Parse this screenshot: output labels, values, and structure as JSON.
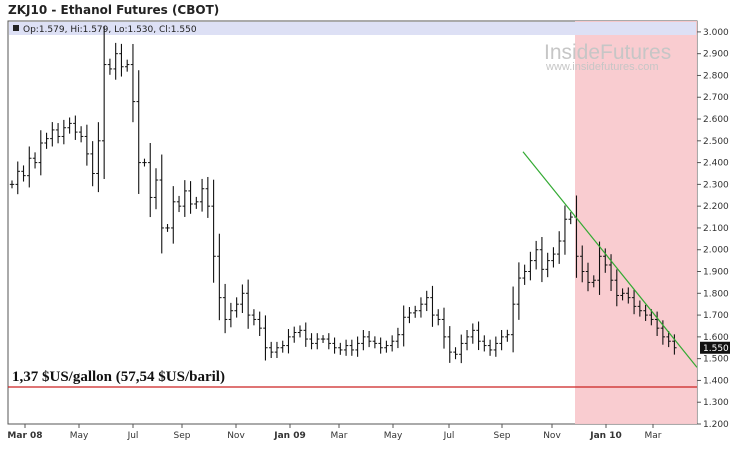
{
  "title": "ZKJ10 - Ethanol Futures (CBOT)",
  "ohlc_text": "Op:1.579, Hi:1.579, Lo:1.530, Cl:1.550",
  "watermark": {
    "brand": "InsideFutures",
    "url": "www.insidefutures.com"
  },
  "last_price_label": "1.550",
  "annotation": "1,37 $US/gallon (57,54 $US/baril)",
  "colors": {
    "bars": "#111111",
    "highlight": "#f9c9cd",
    "trendline": "#33aa33",
    "reference_line": "#cc2222",
    "ohlc_header": "#dde0f5"
  },
  "chart_data": {
    "type": "ohlc",
    "title": "ZKJ10 - Ethanol Futures (CBOT)",
    "y_ticks": [
      "1.200",
      "1.300",
      "1.400",
      "1.500",
      "1.550",
      "1.600",
      "1.700",
      "1.800",
      "1.900",
      "2.000",
      "2.100",
      "2.200",
      "2.300",
      "2.400",
      "2.500",
      "2.600",
      "2.700",
      "2.800",
      "2.900",
      "3.000"
    ],
    "ylim": [
      1.2,
      3.05
    ],
    "x_ticks": [
      "Mar 08",
      "May",
      "Jul",
      "Sep",
      "Nov",
      "Jan 09",
      "Mar",
      "May",
      "Jul",
      "Sep",
      "Nov",
      "Jan 10",
      "Mar"
    ],
    "x_tick_bold": [
      true,
      false,
      false,
      false,
      false,
      true,
      false,
      false,
      false,
      false,
      false,
      true,
      false
    ],
    "highlight_start_x": 165,
    "reference_line": {
      "y": 1.37,
      "label": "1,37 $US/gallon (57,54 $US/baril)"
    },
    "trendline": {
      "start": {
        "x": 149,
        "y": 2.45
      },
      "end": {
        "x": 200,
        "y": 1.46
      }
    },
    "series": [
      {
        "close": [
          2.3,
          2.36,
          2.34,
          2.42,
          2.4,
          2.49,
          2.51,
          2.55,
          2.52,
          2.56,
          2.58,
          2.54,
          2.52,
          2.44,
          2.35,
          2.5,
          2.85,
          2.83,
          2.9,
          2.84,
          2.85,
          2.68,
          2.4,
          2.4,
          2.24,
          2.32,
          2.1,
          2.1,
          2.22,
          2.2,
          2.27,
          2.21,
          2.22,
          2.28,
          2.2,
          1.97,
          1.78,
          1.68,
          1.72,
          1.75,
          1.8,
          1.7,
          1.68,
          1.64,
          1.55,
          1.53,
          1.55,
          1.56,
          1.6,
          1.62,
          1.63,
          1.59,
          1.57,
          1.59,
          1.59,
          1.57,
          1.55,
          1.54,
          1.56,
          1.54,
          1.57,
          1.6,
          1.58,
          1.57,
          1.55,
          1.56,
          1.58,
          1.61,
          1.69,
          1.71,
          1.72,
          1.75,
          1.78,
          1.7,
          1.68,
          1.6,
          1.53,
          1.52,
          1.57,
          1.6,
          1.63,
          1.58,
          1.56,
          1.54,
          1.57,
          1.6,
          1.61,
          1.75,
          1.87,
          1.9,
          1.95,
          2.0,
          1.91,
          1.95,
          1.98,
          2.04,
          2.14,
          2.15,
          1.97,
          1.9,
          1.85,
          1.86,
          1.97,
          1.93,
          1.86,
          1.79,
          1.8,
          1.78,
          1.74,
          1.72,
          1.7,
          1.68,
          1.64,
          1.6,
          1.58,
          1.55
        ]
      }
    ]
  }
}
